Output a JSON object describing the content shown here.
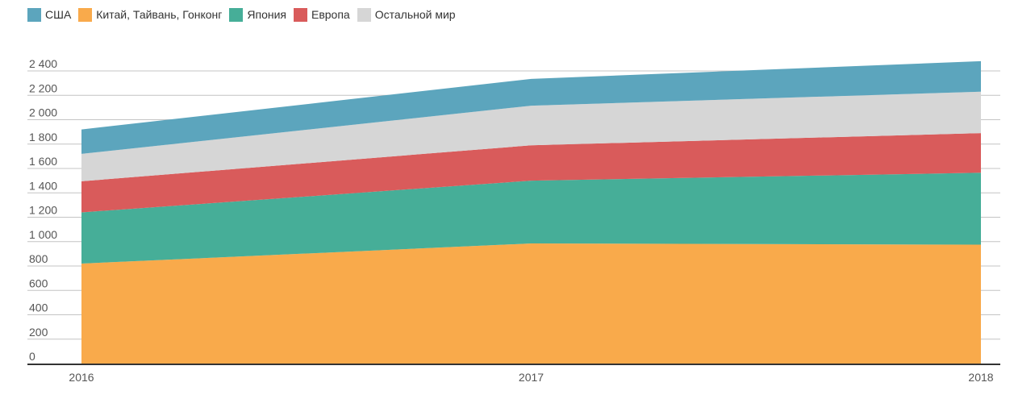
{
  "chart_data": {
    "type": "area",
    "stacked": true,
    "x": [
      "2016",
      "2017",
      "2018"
    ],
    "series": [
      {
        "name": "Китай, Тайвань, Гонконг",
        "color": "#F9AA4B",
        "values": [
          820,
          985,
          975
        ]
      },
      {
        "name": "Япония",
        "color": "#46AE98",
        "values": [
          420,
          515,
          590
        ]
      },
      {
        "name": "Европа",
        "color": "#D95B5B",
        "values": [
          255,
          290,
          325
        ]
      },
      {
        "name": "Остальной мир",
        "color": "#D6D6D6",
        "values": [
          225,
          325,
          340
        ]
      },
      {
        "name": "США",
        "color": "#5CA5BD",
        "values": [
          200,
          220,
          250
        ]
      }
    ],
    "legend_order": [
      "США",
      "Китай, Тайвань, Гонконг",
      "Япония",
      "Европа",
      "Остальной мир"
    ],
    "y_ticks": [
      0,
      200,
      400,
      600,
      800,
      1000,
      1200,
      1400,
      1600,
      1800,
      2000,
      2200,
      2400
    ],
    "y_tick_labels": [
      "0",
      "200",
      "400",
      "600",
      "800",
      "1 000",
      "1 200",
      "1 400",
      "1 600",
      "1 800",
      "2 000",
      "2 200",
      "2 400"
    ],
    "ylim": [
      0,
      2400
    ],
    "grid": true,
    "legend_position": "top-left"
  }
}
